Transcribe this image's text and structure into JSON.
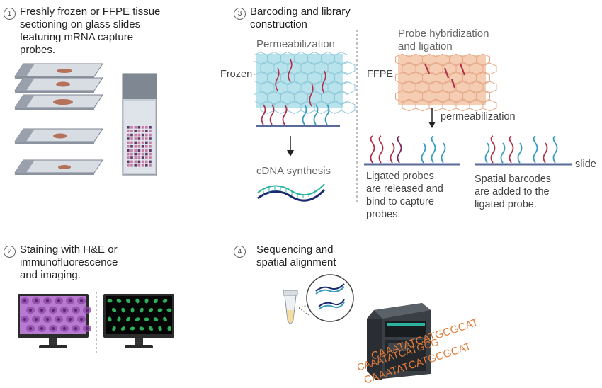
{
  "step1": {
    "number": "1",
    "text": "Freshly frozen or FFPE tissue\nsectioning on glass slides\nfeaturing mRNA capture\nprobes."
  },
  "step2": {
    "number": "2",
    "text": "Staining with H&E or\nimmunofluorescence\nand imaging."
  },
  "step3": {
    "number": "3",
    "text": "Barcoding and library\nconstruction",
    "frozen_label": "Frozen",
    "permeabilization_label": "Permeabilization",
    "cdna_label": "cDNA synthesis",
    "ffpe_label": "FFPE",
    "probe_label": "Probe hybridization\nand ligation",
    "permeabilization_arrow_label": "permeabilization",
    "slide_label": "slide",
    "ligated_text": "Ligated probes\nare released and\nbind to capture\nprobes.",
    "spatial_text": "Spatial barcodes\nare added to the\nligated probe."
  },
  "step4": {
    "number": "4",
    "text": "Sequencing and\nspatial alignment",
    "sequence_lines": [
      "CAAATATCATGCGCAT",
      "CAAATATCATGCG",
      "CAAATATCATGCGCAT"
    ]
  },
  "colors": {
    "slide": "#8c93a0",
    "tissue": "#b5715a",
    "frozen_tissue": "#b9e3ec",
    "ffpe_tissue": "#f5cdb3",
    "probe_red": "#b0304a",
    "probe_blue": "#3a9bc0",
    "he_purple": "#b67ad0",
    "if_green": "#2fae5a",
    "sequence_orange": "#e07b39"
  }
}
